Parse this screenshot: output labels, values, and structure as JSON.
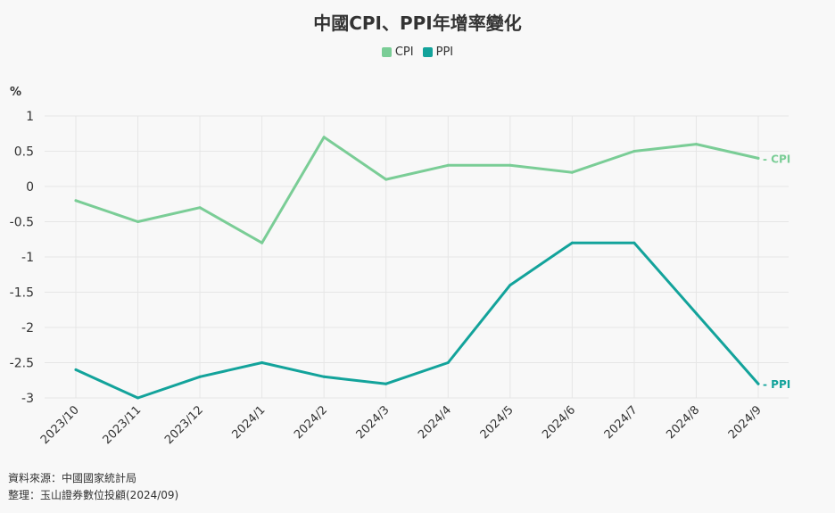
{
  "chart_data": {
    "type": "line",
    "title": "中國CPI、PPI年增率變化",
    "ylabel": "%",
    "categories": [
      "2023/10",
      "2023/11",
      "2023/12",
      "2024/1",
      "2024/2",
      "2024/3",
      "2024/4",
      "2024/5",
      "2024/6",
      "2024/7",
      "2024/8",
      "2024/9"
    ],
    "series": [
      {
        "name": "CPI",
        "color": "#7acd96",
        "values": [
          -0.2,
          -0.5,
          -0.3,
          -0.8,
          0.7,
          0.1,
          0.3,
          0.3,
          0.2,
          0.5,
          0.6,
          0.4
        ]
      },
      {
        "name": "PPI",
        "color": "#13a39b",
        "values": [
          -2.6,
          -3.0,
          -2.7,
          -2.5,
          -2.7,
          -2.8,
          -2.5,
          -1.4,
          -0.8,
          -0.8,
          -1.8,
          -2.8
        ]
      }
    ],
    "ylim": [
      -3,
      1
    ],
    "yticks": [
      "1",
      "0.5",
      "0",
      "-0.5",
      "-1",
      "-1.5",
      "-2",
      "-2.5",
      "-3"
    ],
    "grid": true,
    "legend": "top-center",
    "end_labels": [
      "- CPI",
      "- PPI"
    ]
  },
  "footer": {
    "source": "資料來源：中國國家統計局",
    "compiled": "整理：玉山證券數位投顧(2024/09)"
  }
}
